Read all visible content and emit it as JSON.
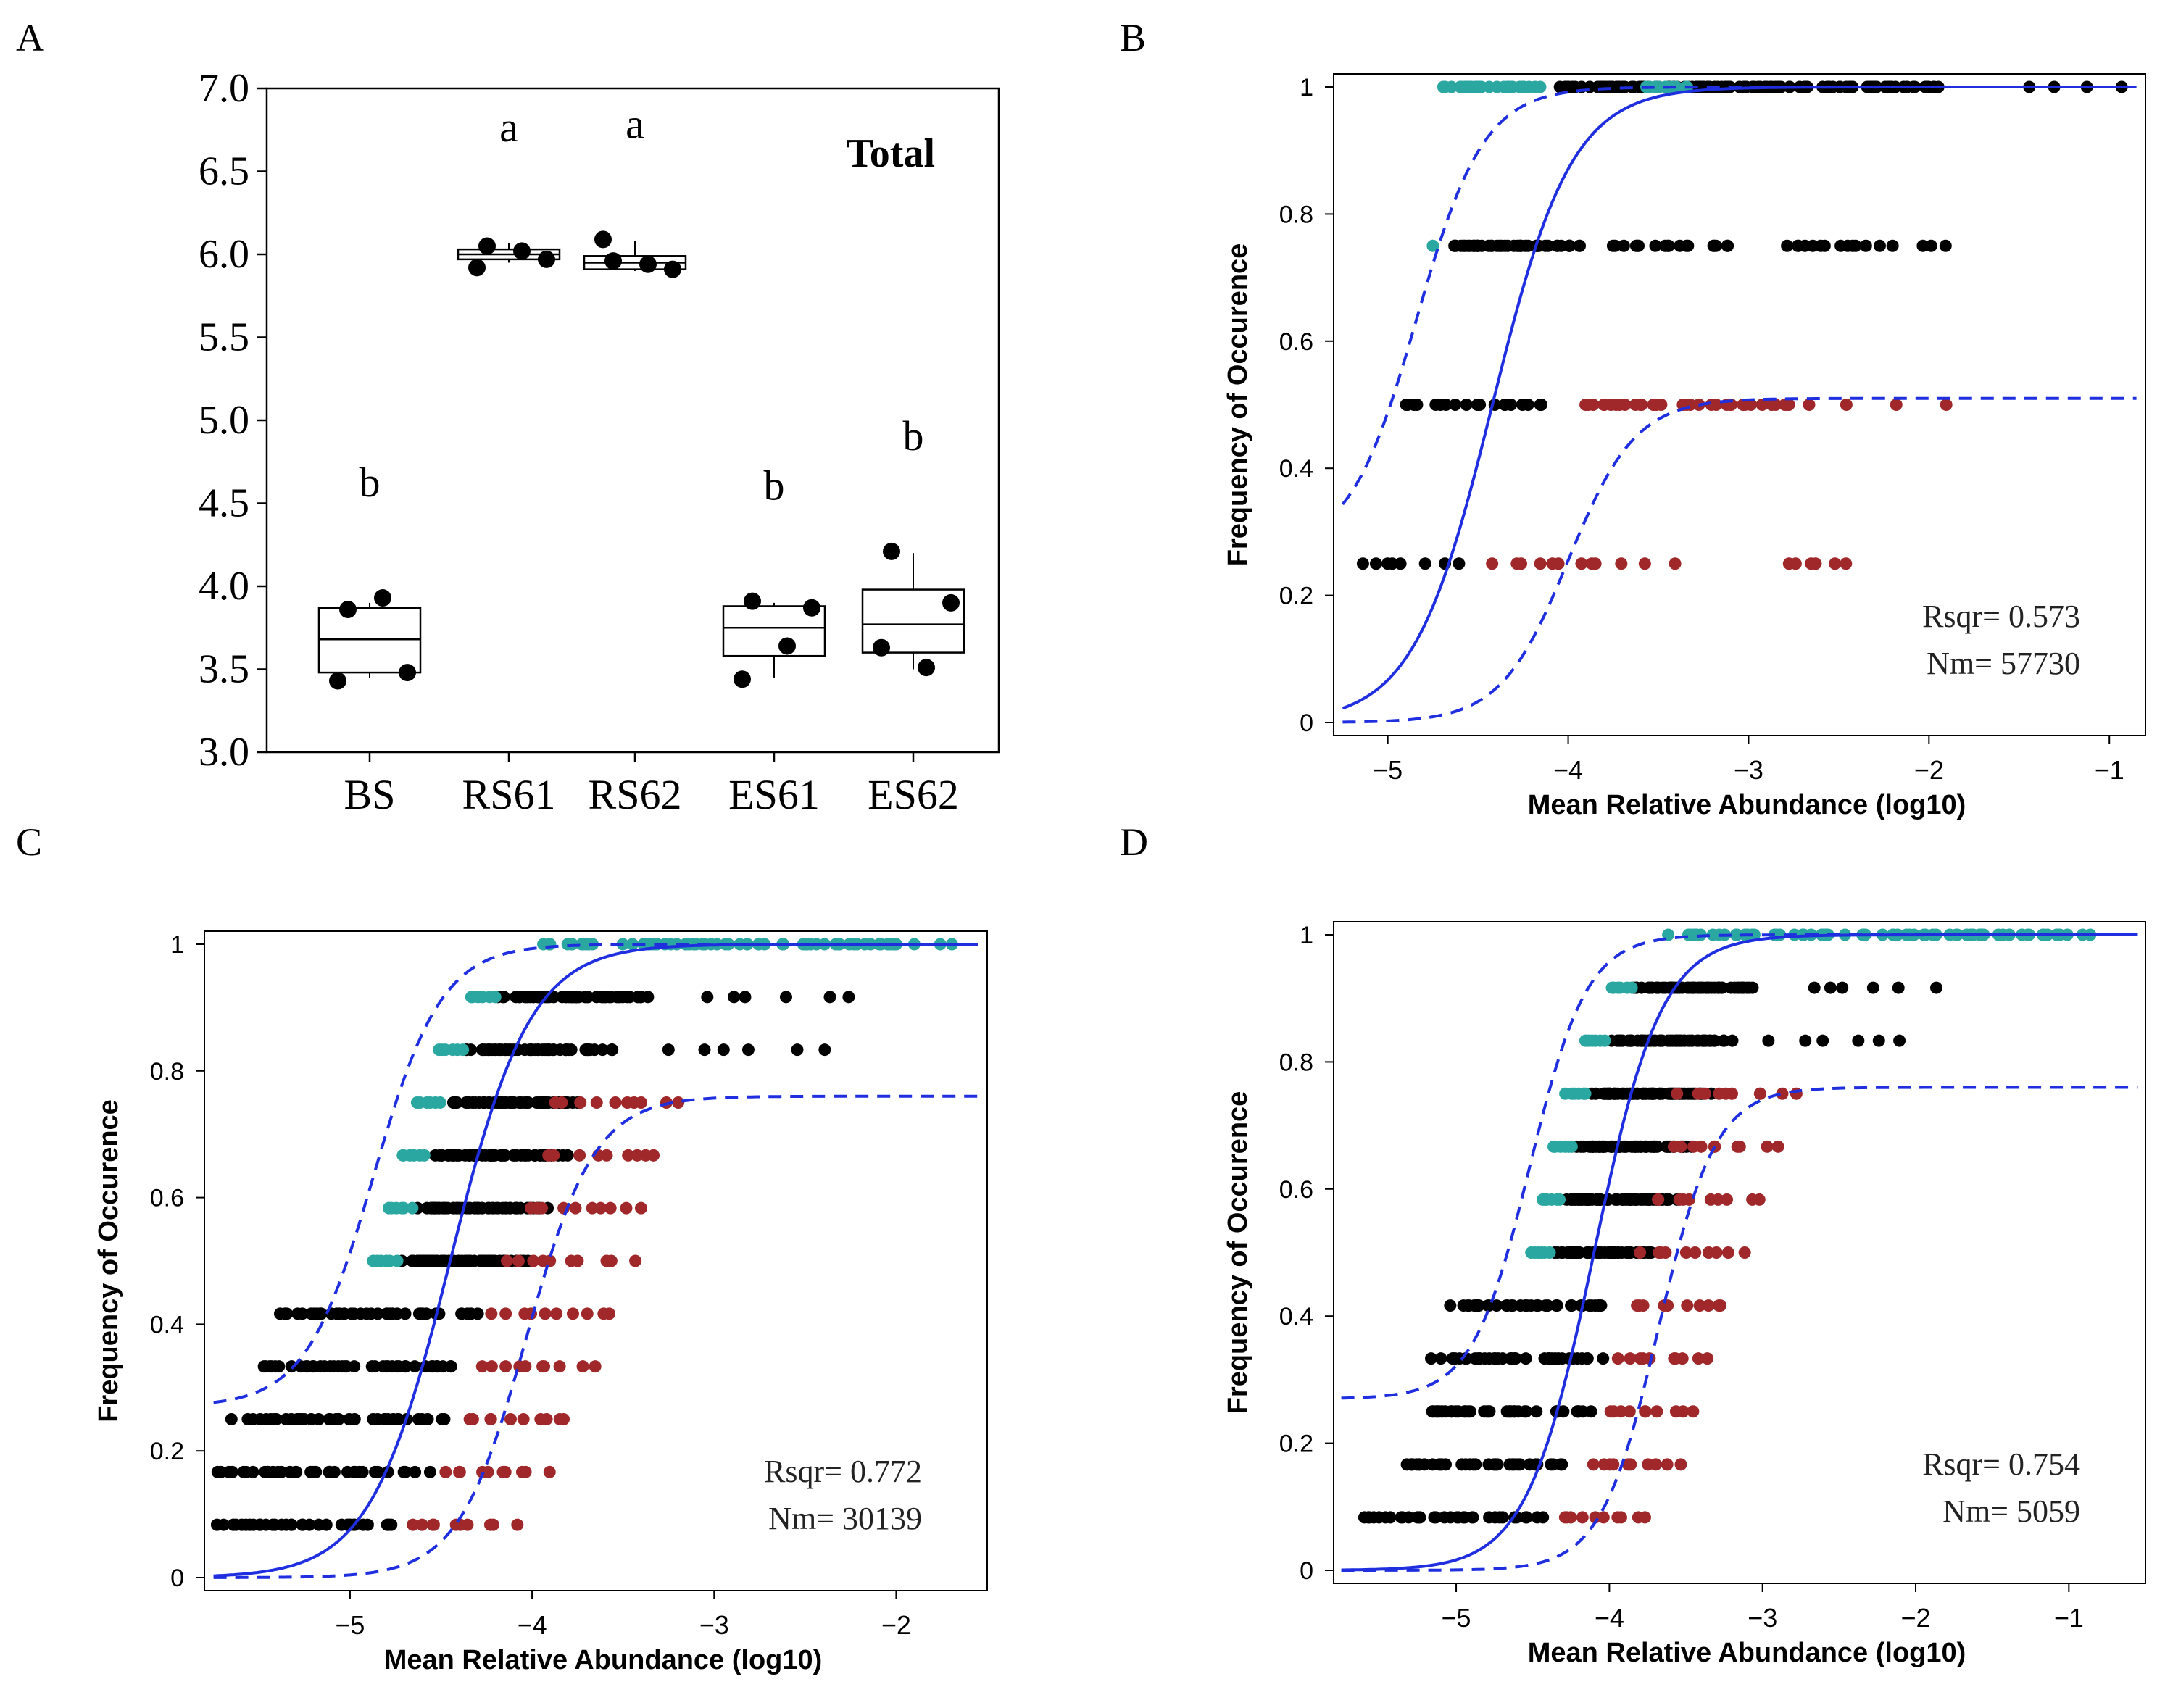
{
  "figure": {
    "panel_labels": [
      "A",
      "B",
      "C",
      "D"
    ]
  },
  "colors": {
    "line": "#1f2fe0",
    "black_points": "#000000",
    "teal_points": "#2aa7a0",
    "red_points": "#a0282a",
    "box": "#000000"
  },
  "chart_data": [
    {
      "panel": "A",
      "type": "box",
      "title": "Total",
      "xlabel": "",
      "ylabel": "",
      "ylim": [
        3.0,
        7.0
      ],
      "yticks": [
        "3.0",
        "3.5",
        "4.0",
        "4.5",
        "5.0",
        "5.5",
        "6.0",
        "6.5",
        "7.0"
      ],
      "categories": [
        "BS",
        "RS61",
        "RS62",
        "ES61",
        "ES62"
      ],
      "letters": [
        "b",
        "a",
        "a",
        "b",
        "b"
      ],
      "boxes": [
        {
          "min": 3.45,
          "q1": 3.48,
          "median": 3.68,
          "q3": 3.87,
          "max": 3.9
        },
        {
          "min": 5.95,
          "q1": 5.97,
          "median": 6.0,
          "q3": 6.03,
          "max": 6.07
        },
        {
          "min": 5.9,
          "q1": 5.91,
          "median": 5.95,
          "q3": 5.99,
          "max": 6.08
        },
        {
          "min": 3.45,
          "q1": 3.58,
          "median": 3.75,
          "q3": 3.88,
          "max": 3.9
        },
        {
          "min": 3.5,
          "q1": 3.6,
          "median": 3.77,
          "q3": 3.98,
          "max": 4.2
        }
      ],
      "points": [
        [
          3.86,
          3.93,
          3.48,
          3.43
        ],
        [
          6.05,
          6.02,
          5.97,
          5.92
        ],
        [
          5.96,
          5.94,
          5.91,
          6.09
        ],
        [
          3.91,
          3.64,
          3.87,
          3.44
        ],
        [
          4.21,
          3.51,
          3.9,
          3.63
        ]
      ]
    },
    {
      "panel": "B",
      "type": "scatter",
      "xlabel": "Mean Relative Abundance (log10)",
      "ylabel": "Frequency of Occurence",
      "xlim": [
        -5.3,
        -0.8
      ],
      "ylim": [
        0,
        1
      ],
      "xticks": [
        "−5",
        "−4",
        "−3",
        "−2",
        "−1"
      ],
      "yticks": [
        "0",
        "0.2",
        "0.4",
        "0.6",
        "0.8",
        "1"
      ],
      "annotations": [
        "Rsqr= 0.573",
        "Nm= 57730"
      ],
      "levels": 4,
      "model": {
        "center": -4.42,
        "scale": 0.22
      },
      "lower_asymptote": 0.51,
      "teal": [
        {
          "y": 1.0,
          "x0": -4.72,
          "x1": -4.1,
          "n": 30
        },
        {
          "y": 1.0,
          "x0": -3.6,
          "x1": -3.3,
          "n": 10
        },
        {
          "y": 0.75,
          "x0": -4.75,
          "x1": -4.75,
          "n": 1
        }
      ],
      "black": [
        {
          "y": 1.0,
          "x0": -4.1,
          "x1": -1.8,
          "n": 120
        },
        {
          "y": 1.0,
          "x0": -1.45,
          "x1": -0.85,
          "n": 4
        },
        {
          "y": 0.75,
          "x0": -4.7,
          "x1": -3.9,
          "n": 45
        },
        {
          "y": 0.75,
          "x0": -3.8,
          "x1": -3.0,
          "n": 18
        },
        {
          "y": 0.75,
          "x0": -2.8,
          "x1": -2.2,
          "n": 14
        },
        {
          "y": 0.75,
          "x0": -2.05,
          "x1": -1.9,
          "n": 3
        },
        {
          "y": 0.5,
          "x0": -4.95,
          "x1": -4.05,
          "n": 20
        },
        {
          "y": 0.25,
          "x0": -5.2,
          "x1": -4.6,
          "n": 8
        }
      ],
      "red": [
        {
          "y": 0.5,
          "x0": -4.0,
          "x1": -2.6,
          "n": 36
        },
        {
          "y": 0.5,
          "x0": -2.5,
          "x1": -1.9,
          "n": 3
        },
        {
          "y": 0.25,
          "x0": -4.45,
          "x1": -3.65,
          "n": 10
        },
        {
          "y": 0.25,
          "x0": -3.6,
          "x1": -3.4,
          "n": 2
        },
        {
          "y": 0.25,
          "x0": -2.8,
          "x1": -2.45,
          "n": 6
        }
      ]
    },
    {
      "panel": "C",
      "type": "scatter",
      "xlabel": "Mean Relative Abundance (log10)",
      "ylabel": "Frequency of Occurence",
      "xlim": [
        -5.8,
        -1.5
      ],
      "ylim": [
        0,
        1
      ],
      "xticks": [
        "−5",
        "−4",
        "−3",
        "−2"
      ],
      "yticks": [
        "0",
        "0.2",
        "0.4",
        "0.6",
        "0.8",
        "1"
      ],
      "annotations": [
        "Rsqr= 0.772",
        "Nm= 30139"
      ],
      "levels": 12,
      "model": {
        "center": -4.45,
        "scale": 0.22
      },
      "lower_asymptote": 0.76
    },
    {
      "panel": "D",
      "type": "scatter",
      "xlabel": "Mean Relative Abundance (log10)",
      "ylabel": "Frequency of Occurence",
      "xlim": [
        -5.8,
        -0.5
      ],
      "ylim": [
        0,
        1
      ],
      "xticks": [
        "−5",
        "−4",
        "−3",
        "−2",
        "−1"
      ],
      "yticks": [
        "0",
        "0.2",
        "0.4",
        "0.6",
        "0.8",
        "1"
      ],
      "annotations": [
        "Rsqr= 0.754",
        "Nm= 5059"
      ],
      "levels": 12,
      "model": {
        "center": -4.1,
        "scale": 0.22
      },
      "lower_asymptote": 0.76
    }
  ]
}
